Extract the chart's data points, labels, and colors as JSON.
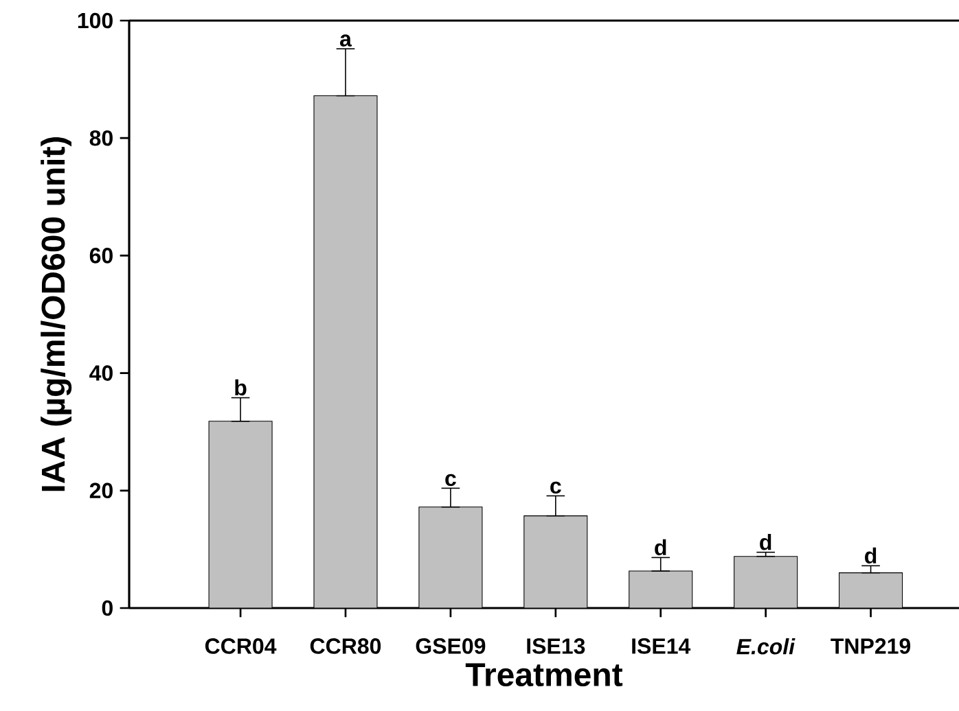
{
  "chart_data": {
    "type": "bar",
    "xlabel": "Treatment",
    "ylabel": "IAA (µg/ml/OD600 unit)",
    "categories": [
      "CCR04",
      "CCR80",
      "GSE09",
      "ISE13",
      "ISE14",
      "*E.coli*",
      "TNP219"
    ],
    "values": [
      31.8,
      87.2,
      17.2,
      15.7,
      6.3,
      8.8,
      6.0
    ],
    "errors": [
      [
        31.8,
        35.8
      ],
      [
        87.2,
        95.2
      ],
      [
        17.2,
        20.4
      ],
      [
        15.7,
        19.1
      ],
      [
        6.3,
        8.6
      ],
      [
        8.8,
        9.5
      ],
      [
        6.0,
        7.2
      ]
    ],
    "color": "#c0c0c0",
    "ylim": [
      0,
      100
    ],
    "yticks": [
      0,
      20,
      40,
      60,
      80,
      100
    ],
    "annotations": [
      {
        "text": "b",
        "x": "CCR04",
        "y": 35.8
      },
      {
        "text": "a",
        "x": "CCR80",
        "y": 95.2
      },
      {
        "text": "c",
        "x": "GSE09",
        "y": 20.4
      },
      {
        "text": "c",
        "x": "ISE13",
        "y": 19.1
      },
      {
        "text": "d",
        "x": "ISE14",
        "y": 8.6
      },
      {
        "text": "d",
        "x": "*E.coli*",
        "y": 9.5
      },
      {
        "text": "d",
        "x": "TNP219",
        "y": 7.2
      }
    ]
  }
}
